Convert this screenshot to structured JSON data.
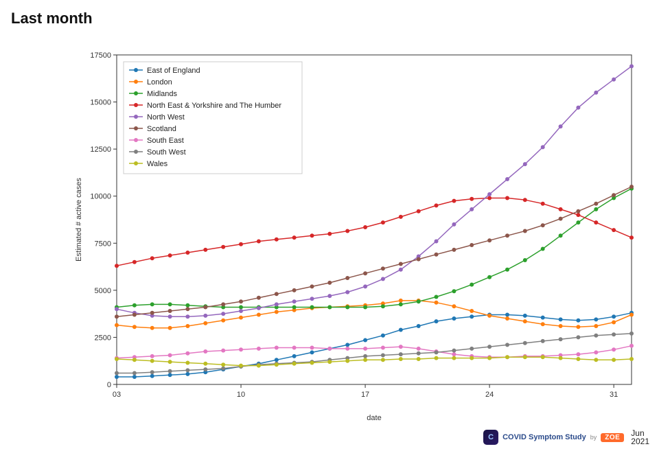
{
  "title": "Last month",
  "chart": {
    "type": "line",
    "xlabel": "date",
    "ylabel": "Estimated # active cases",
    "label_fontsize": 11,
    "background_color": "#ffffff",
    "axis_color": "#333333",
    "tick_fontsize": 11,
    "x": {
      "values": [
        3,
        4,
        5,
        6,
        7,
        8,
        9,
        10,
        11,
        12,
        13,
        14,
        15,
        16,
        17,
        18,
        19,
        20,
        21,
        22,
        23,
        24,
        25,
        26,
        27,
        28,
        29,
        30,
        31,
        32
      ],
      "tick_positions": [
        3,
        10,
        17,
        24,
        31
      ],
      "tick_labels": [
        "03",
        "10",
        "17",
        "24",
        "31"
      ],
      "month_label": "Jun",
      "lim": [
        3,
        32
      ]
    },
    "y": {
      "lim": [
        0,
        17500
      ],
      "tick_positions": [
        0,
        2500,
        5000,
        7500,
        10000,
        12500,
        15000,
        17500
      ],
      "tick_labels": [
        "0",
        "2500",
        "5000",
        "7500",
        "10000",
        "12500",
        "15000",
        "17500"
      ]
    },
    "marker": {
      "style": "circle",
      "size": 3
    },
    "line_width": 1.5,
    "series": [
      {
        "name": "East of England",
        "color": "#1f77b4",
        "y": [
          400,
          400,
          450,
          500,
          550,
          650,
          800,
          950,
          1100,
          1300,
          1500,
          1700,
          1900,
          2100,
          2350,
          2600,
          2900,
          3100,
          3350,
          3500,
          3600,
          3700,
          3700,
          3650,
          3550,
          3450,
          3400,
          3450,
          3600,
          3800
        ]
      },
      {
        "name": "London",
        "color": "#ff7f0e",
        "y": [
          3150,
          3050,
          3000,
          3000,
          3100,
          3250,
          3400,
          3550,
          3700,
          3850,
          3950,
          4050,
          4100,
          4150,
          4200,
          4300,
          4450,
          4450,
          4350,
          4150,
          3900,
          3650,
          3500,
          3350,
          3200,
          3100,
          3050,
          3100,
          3300,
          3700
        ]
      },
      {
        "name": "Midlands",
        "color": "#2ca02c",
        "y": [
          4100,
          4200,
          4250,
          4250,
          4200,
          4150,
          4100,
          4100,
          4100,
          4100,
          4100,
          4100,
          4100,
          4100,
          4100,
          4150,
          4250,
          4400,
          4650,
          4950,
          5300,
          5700,
          6100,
          6600,
          7200,
          7900,
          8600,
          9300,
          9900,
          10400
        ]
      },
      {
        "name": "North East & Yorkshire and The Humber",
        "color": "#d62728",
        "y": [
          6300,
          6500,
          6700,
          6850,
          7000,
          7150,
          7300,
          7450,
          7600,
          7700,
          7800,
          7900,
          8000,
          8150,
          8350,
          8600,
          8900,
          9200,
          9500,
          9750,
          9850,
          9900,
          9900,
          9800,
          9600,
          9300,
          9000,
          8600,
          8200,
          7800
        ]
      },
      {
        "name": "North West",
        "color": "#9467bd",
        "y": [
          4000,
          3800,
          3650,
          3600,
          3600,
          3650,
          3750,
          3900,
          4050,
          4250,
          4400,
          4550,
          4700,
          4900,
          5200,
          5600,
          6100,
          6800,
          7600,
          8500,
          9300,
          10100,
          10900,
          11700,
          12600,
          13700,
          14700,
          15500,
          16200,
          16900
        ]
      },
      {
        "name": "Scotland",
        "color": "#8c564b",
        "y": [
          3600,
          3700,
          3800,
          3900,
          4000,
          4100,
          4250,
          4400,
          4600,
          4800,
          5000,
          5200,
          5400,
          5650,
          5900,
          6150,
          6400,
          6650,
          6900,
          7150,
          7400,
          7650,
          7900,
          8150,
          8450,
          8800,
          9200,
          9600,
          10050,
          10500
        ]
      },
      {
        "name": "South East",
        "color": "#e377c2",
        "y": [
          1400,
          1450,
          1500,
          1550,
          1650,
          1750,
          1800,
          1850,
          1900,
          1950,
          1950,
          1950,
          1900,
          1900,
          1900,
          1950,
          2000,
          1900,
          1750,
          1600,
          1500,
          1450,
          1450,
          1500,
          1500,
          1550,
          1600,
          1700,
          1850,
          2050
        ]
      },
      {
        "name": "South West",
        "color": "#7f7f7f",
        "y": [
          600,
          600,
          650,
          700,
          750,
          800,
          850,
          950,
          1050,
          1100,
          1150,
          1200,
          1300,
          1400,
          1500,
          1550,
          1600,
          1650,
          1700,
          1800,
          1900,
          2000,
          2100,
          2200,
          2300,
          2400,
          2500,
          2600,
          2650,
          2700
        ]
      },
      {
        "name": "Wales",
        "color": "#bcbd22",
        "y": [
          1350,
          1300,
          1250,
          1200,
          1150,
          1100,
          1050,
          1000,
          1000,
          1050,
          1100,
          1150,
          1200,
          1250,
          1300,
          1300,
          1350,
          1350,
          1400,
          1400,
          1400,
          1400,
          1450,
          1450,
          1450,
          1400,
          1350,
          1300,
          1300,
          1350
        ]
      }
    ],
    "legend": {
      "position": "upper-left",
      "border_color": "#cccccc",
      "bg_color": "#ffffff"
    }
  },
  "footer": {
    "study_text": "COVID Symptom Study",
    "by_text": "by",
    "brand_text": "ZOE",
    "year_text": "2021"
  }
}
